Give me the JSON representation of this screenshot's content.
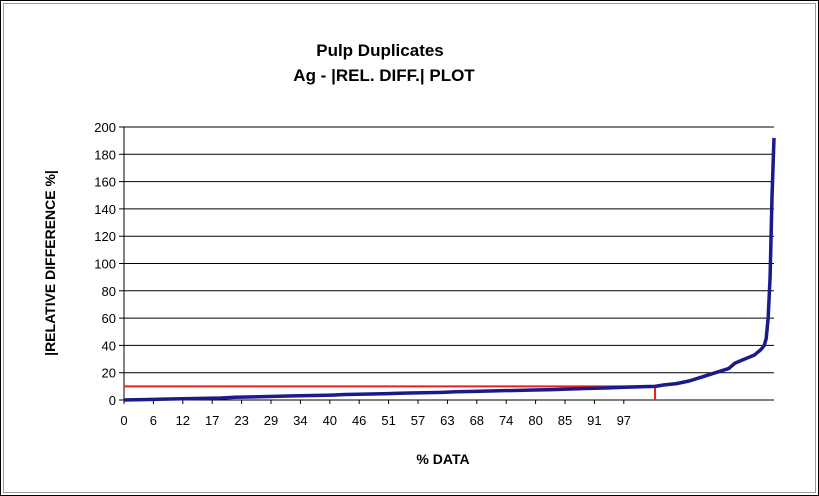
{
  "chart_data": {
    "type": "line",
    "title": "Pulp Duplicates",
    "subtitle": "Ag -  |REL. DIFF.| PLOT",
    "xlabel": "% DATA",
    "ylabel": "|RELATIVE  DIFFERENCE  %|",
    "xlim": [
      0,
      100
    ],
    "ylim": [
      0,
      200
    ],
    "y_ticks": [
      "0",
      "20",
      "40",
      "60",
      "80",
      "100",
      "120",
      "140",
      "160",
      "180",
      "200"
    ],
    "x_ticks": [
      "0",
      "6",
      "12",
      "17",
      "23",
      "29",
      "34",
      "40",
      "46",
      "51",
      "57",
      "63",
      "68",
      "74",
      "80",
      "85",
      "91",
      "97"
    ],
    "grid": "horizontal",
    "legend": "none",
    "series": [
      {
        "color": "#1a1a8c",
        "x": [
          0,
          3,
          6,
          9,
          12,
          15,
          17,
          20,
          23,
          26,
          29,
          32,
          34,
          37,
          40,
          43,
          46,
          49,
          51,
          54,
          57,
          60,
          63,
          66,
          68,
          71,
          74,
          77,
          80,
          81.7,
          83,
          85,
          87,
          89,
          91,
          93,
          94,
          95,
          96,
          97,
          98,
          98.5,
          98.8,
          99.1,
          99.4,
          99.7,
          100
        ],
        "y": [
          0,
          0.3,
          0.6,
          0.9,
          1.2,
          1.5,
          2,
          2.3,
          2.7,
          3,
          3.3,
          3.6,
          4,
          4.3,
          4.6,
          5,
          5.3,
          5.6,
          6,
          6.3,
          6.7,
          7,
          7.3,
          7.6,
          8,
          8.4,
          8.8,
          9.3,
          9.8,
          10,
          11,
          12,
          14,
          17,
          20,
          23,
          27,
          29,
          31,
          33,
          37,
          40,
          45,
          60,
          90,
          150,
          192
        ]
      }
    ],
    "reference_lines": [
      {
        "color": "#e8201e",
        "x": [
          0,
          81.7,
          81.7
        ],
        "y": [
          10,
          10,
          0
        ]
      }
    ]
  }
}
